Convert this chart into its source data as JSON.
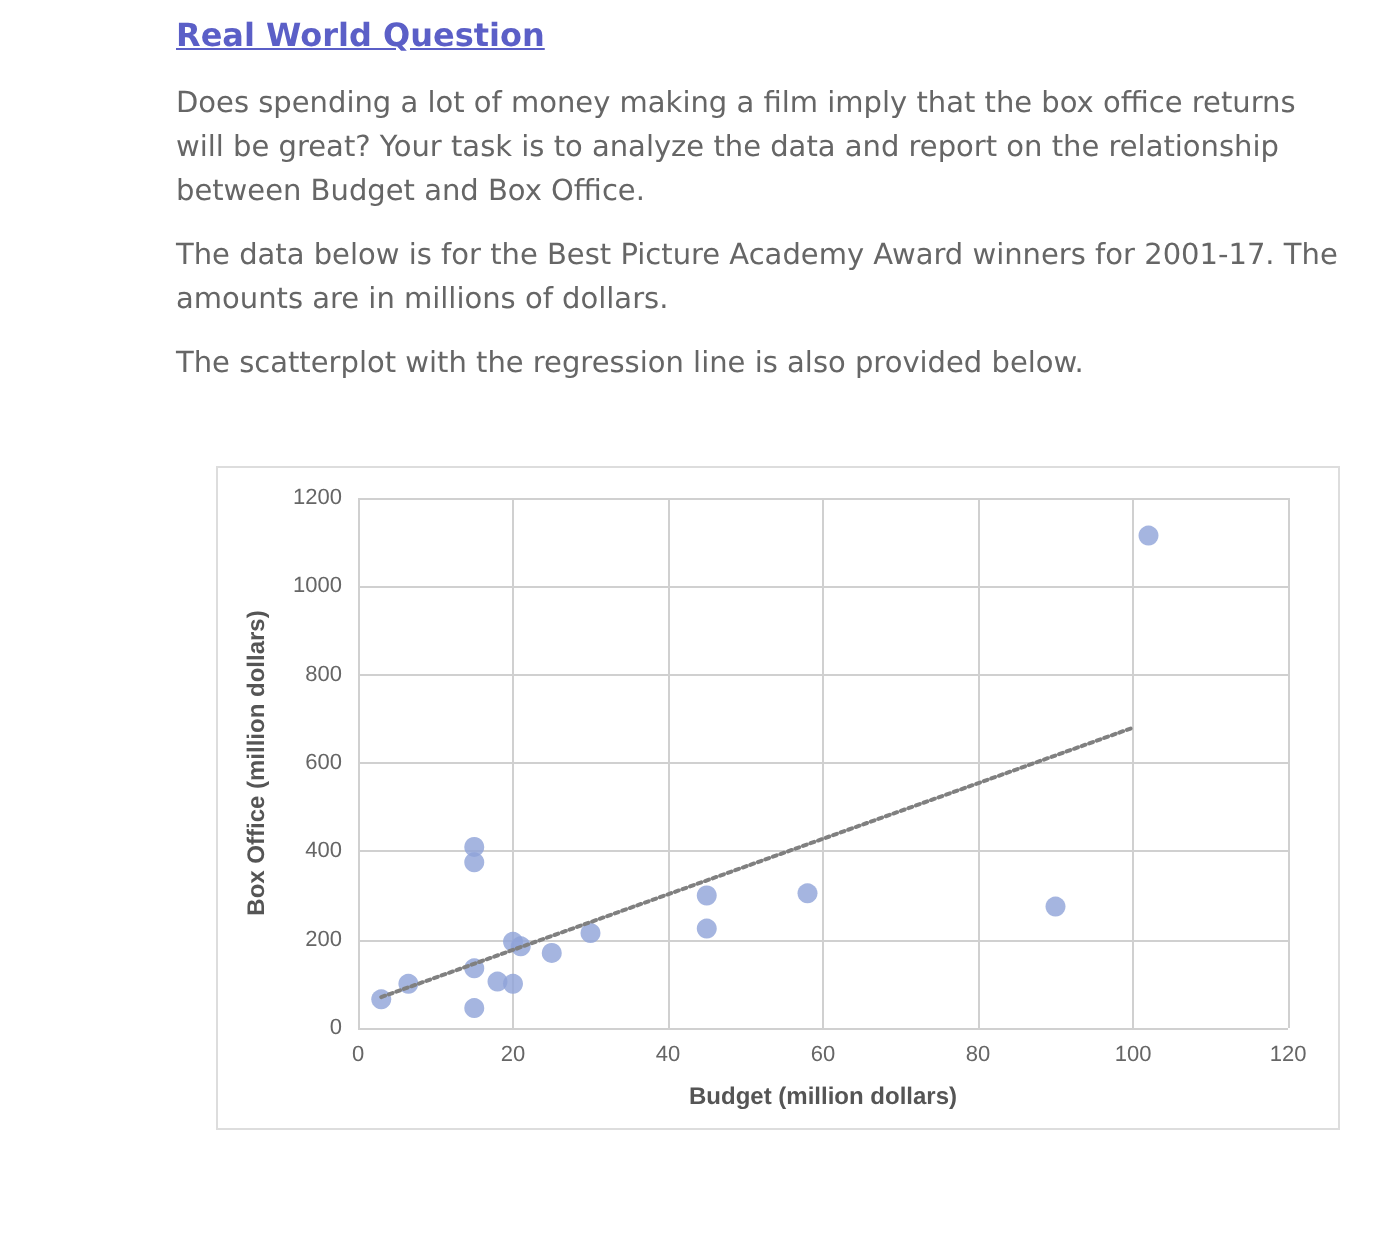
{
  "chart_data": {
    "type": "scatter",
    "title": "Real World Question",
    "annotations": [
      "Does spending a lot of money making a film imply that the box office returns will be great? Your task is to analyze the data and report on the relationship between Budget and Box Office.",
      "The data below is for the Best Picture Academy Award winners for 2001-17. The amounts are in millions of dollars.",
      "The scatterplot with the regression line is also provided below."
    ],
    "xlabel": "Budget (million dollars)",
    "ylabel": "Box Office (million dollars)",
    "xlim": [
      0,
      120
    ],
    "xticks": [
      0,
      20,
      40,
      60,
      80,
      100,
      120
    ],
    "ylim": [
      0,
      1200
    ],
    "yticks": [
      0,
      200,
      400,
      600,
      800,
      1000,
      1200
    ],
    "grid": true,
    "marker": "circle",
    "series": [
      {
        "color": "#8fa3d8",
        "x": [
          3,
          6.5,
          15,
          15,
          15,
          15,
          18,
          20,
          20,
          21,
          25,
          30,
          45,
          45,
          58,
          90,
          102
        ],
        "values": [
          65,
          100,
          410,
          375,
          135,
          45,
          105,
          100,
          195,
          185,
          170,
          215,
          225,
          300,
          305,
          275,
          1115
        ]
      },
      {
        "type": "line",
        "color": "#808080",
        "line_style": "dotted",
        "marker": "none",
        "x": [
          3,
          100
        ],
        "values": [
          70,
          680
        ]
      }
    ]
  }
}
